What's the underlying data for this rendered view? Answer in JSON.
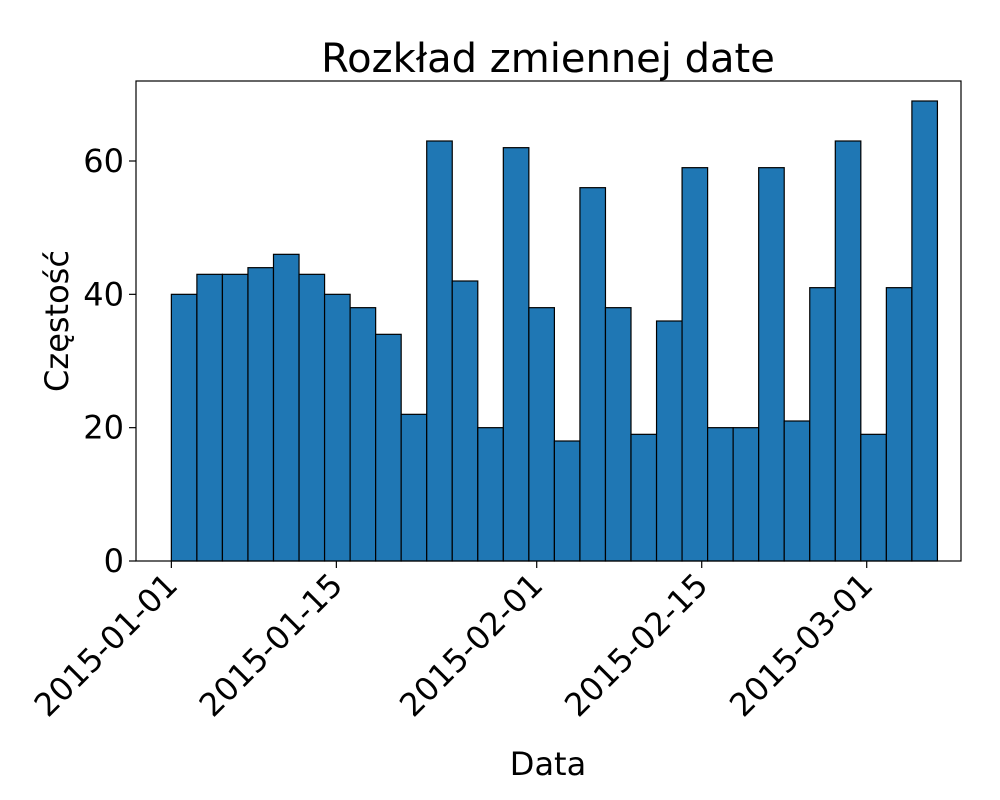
{
  "chart_data": {
    "type": "bar",
    "title": "Rozkład zmiennej date",
    "xlabel": "Data",
    "ylabel": "Częstość",
    "ylim": [
      0,
      72
    ],
    "xlim": [
      "2014-12-29",
      "2015-03-09"
    ],
    "yticks": [
      0,
      20,
      40,
      60
    ],
    "xticks": [
      "2015-01-01",
      "2015-01-15",
      "2015-02-01",
      "2015-02-15",
      "2015-03-01"
    ],
    "bin_start": "2015-01-01",
    "bin_end": "2015-03-07",
    "values": [
      40,
      43,
      43,
      44,
      46,
      43,
      40,
      38,
      34,
      22,
      63,
      42,
      20,
      62,
      38,
      18,
      56,
      38,
      19,
      36,
      59,
      20,
      20,
      59,
      21,
      41,
      63,
      19,
      41,
      69
    ],
    "bar_color": "#1f77b4",
    "edge_color": "#000000",
    "grid": false,
    "legend": "none"
  }
}
